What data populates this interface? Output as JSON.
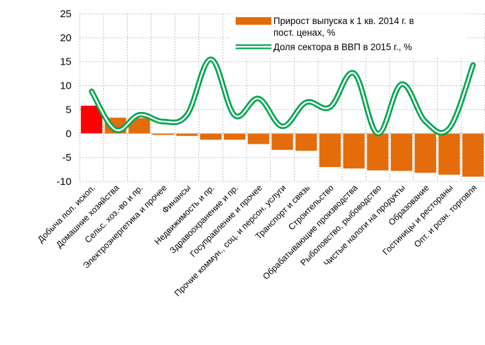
{
  "chart_data": {
    "type": "bar",
    "categories": [
      "Добыча пол. ископ.",
      "Домашние хозяйства",
      "Сельс. хоз.-во и пр.",
      "Электроэнергетика и прочее",
      "Финансы",
      "Недвижимость и пр.",
      "Здравоохранение и пр.",
      "Госуправление и прочее",
      "Прочие коммун., соц. и персон. услуги",
      "Транспорт и связь",
      "Строительство",
      "Обрабатывающие производства",
      "Рыболовство, рыбоводство",
      "Чистые налоги на продукты",
      "Образование",
      "Гостиницы и рестораны",
      "Опт. и розн. торговля"
    ],
    "series": [
      {
        "name": "Прирост выпуска к 1 кв. 2014 г. в пост. ценах, %",
        "kind": "bar",
        "values": [
          5.8,
          3.3,
          3.2,
          -0.3,
          -0.5,
          -1.3,
          -1.3,
          -2.2,
          -3.4,
          -3.6,
          -7.0,
          -7.3,
          -7.7,
          -7.8,
          -8.2,
          -8.6,
          -9.0
        ],
        "colors": [
          "#ff0000",
          "#e46c0a",
          "#e46c0a",
          "#e46c0a",
          "#e46c0a",
          "#e46c0a",
          "#e46c0a",
          "#e46c0a",
          "#e46c0a",
          "#e46c0a",
          "#e46c0a",
          "#e46c0a",
          "#e46c0a",
          "#e46c0a",
          "#e46c0a",
          "#e46c0a",
          "#e46c0a"
        ]
      },
      {
        "name": "Доля сектора в ВВП в 2015 г., %",
        "kind": "line",
        "values": [
          8.8,
          0.8,
          3.9,
          2.5,
          3.9,
          15.5,
          3.8,
          7.3,
          1.5,
          6.5,
          5.5,
          12.6,
          0.0,
          10.3,
          2.5,
          1.1,
          14.3
        ]
      }
    ],
    "yticks": [
      -10,
      -5,
      0,
      5,
      10,
      15,
      20,
      25
    ],
    "ylim": [
      -10,
      25
    ],
    "grid": true,
    "legend_position": "top-right",
    "colors": {
      "bar": "#e46c0a",
      "bar_highlight": "#ff0000",
      "line_outer": "#00a651",
      "line_inner": "#ffffff",
      "grid": "#bfbfbf"
    }
  }
}
